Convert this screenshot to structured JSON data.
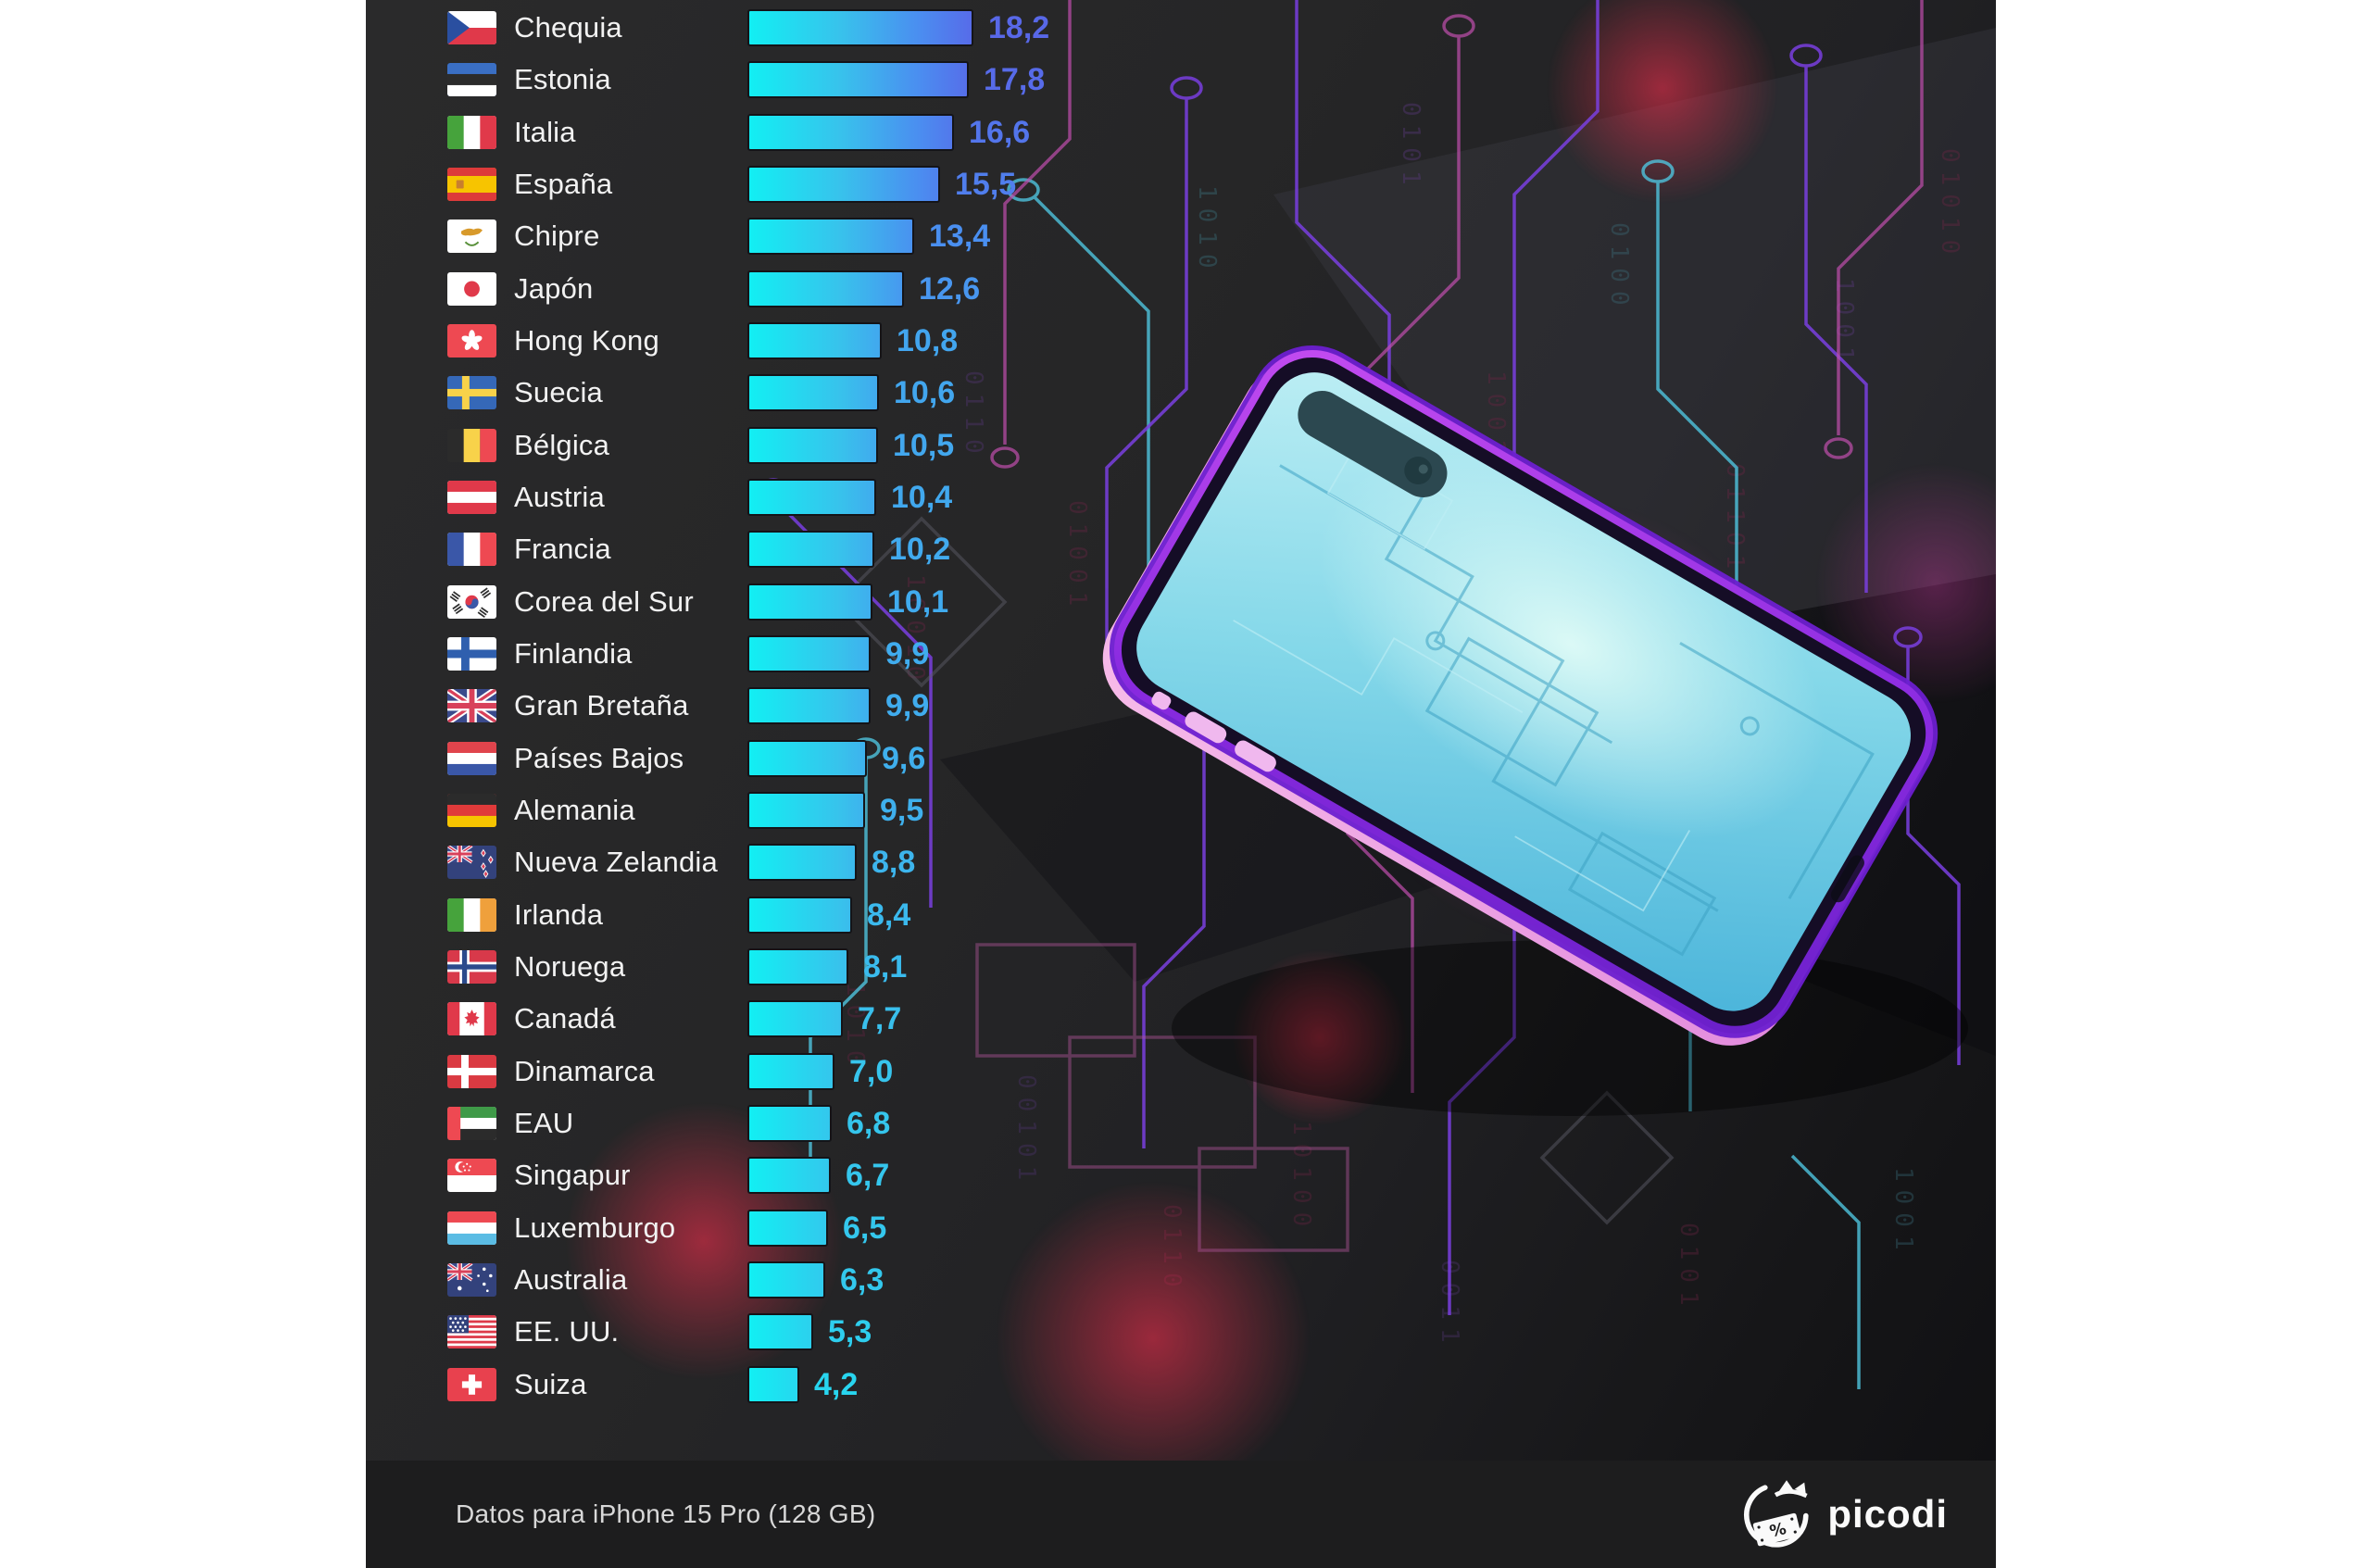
{
  "chart_data": {
    "type": "bar",
    "orientation": "horizontal",
    "title": "",
    "xlabel": "",
    "ylabel": "",
    "max_value": 18.2,
    "value_format": "decimal-comma",
    "bar_gradient": [
      "#12EFF3",
      "#38C2EC",
      "#4B8DF0",
      "#5868E8"
    ],
    "rows": [
      {
        "country": "Chequia",
        "code": "cz",
        "value": 18.2,
        "label": "18,2"
      },
      {
        "country": "Estonia",
        "code": "ee",
        "value": 17.8,
        "label": "17,8"
      },
      {
        "country": "Italia",
        "code": "it",
        "value": 16.6,
        "label": "16,6"
      },
      {
        "country": "España",
        "code": "es",
        "value": 15.5,
        "label": "15,5"
      },
      {
        "country": "Chipre",
        "code": "cy",
        "value": 13.4,
        "label": "13,4"
      },
      {
        "country": "Japón",
        "code": "jp",
        "value": 12.6,
        "label": "12,6"
      },
      {
        "country": "Hong Kong",
        "code": "hk",
        "value": 10.8,
        "label": "10,8"
      },
      {
        "country": "Suecia",
        "code": "se",
        "value": 10.6,
        "label": "10,6"
      },
      {
        "country": "Bélgica",
        "code": "be",
        "value": 10.5,
        "label": "10,5"
      },
      {
        "country": "Austria",
        "code": "at",
        "value": 10.4,
        "label": "10,4"
      },
      {
        "country": "Francia",
        "code": "fr",
        "value": 10.2,
        "label": "10,2"
      },
      {
        "country": "Corea del Sur",
        "code": "kr",
        "value": 10.1,
        "label": "10,1"
      },
      {
        "country": "Finlandia",
        "code": "fi",
        "value": 9.9,
        "label": "9,9"
      },
      {
        "country": "Gran Bretaña",
        "code": "gb",
        "value": 9.9,
        "label": "9,9"
      },
      {
        "country": "Países Bajos",
        "code": "nl",
        "value": 9.6,
        "label": "9,6"
      },
      {
        "country": "Alemania",
        "code": "de",
        "value": 9.5,
        "label": "9,5"
      },
      {
        "country": "Nueva Zelandia",
        "code": "nz",
        "value": 8.8,
        "label": "8,8"
      },
      {
        "country": "Irlanda",
        "code": "ie",
        "value": 8.4,
        "label": "8,4"
      },
      {
        "country": "Noruega",
        "code": "no",
        "value": 8.1,
        "label": "8,1"
      },
      {
        "country": "Canadá",
        "code": "ca",
        "value": 7.7,
        "label": "7,7"
      },
      {
        "country": "Dinamarca",
        "code": "dk",
        "value": 7.0,
        "label": "7,0"
      },
      {
        "country": "EAU",
        "code": "ae",
        "value": 6.8,
        "label": "6,8"
      },
      {
        "country": "Singapur",
        "code": "sg",
        "value": 6.7,
        "label": "6,7"
      },
      {
        "country": "Luxemburgo",
        "code": "lu",
        "value": 6.5,
        "label": "6,5"
      },
      {
        "country": "Australia",
        "code": "au",
        "value": 6.3,
        "label": "6,3"
      },
      {
        "country": "EE. UU.",
        "code": "us",
        "value": 5.3,
        "label": "5,3"
      },
      {
        "country": "Suiza",
        "code": "ch",
        "value": 4.2,
        "label": "4,2"
      }
    ]
  },
  "footer": {
    "note": "Datos para iPhone 15 Pro (128 GB)",
    "brand": "picodi"
  }
}
